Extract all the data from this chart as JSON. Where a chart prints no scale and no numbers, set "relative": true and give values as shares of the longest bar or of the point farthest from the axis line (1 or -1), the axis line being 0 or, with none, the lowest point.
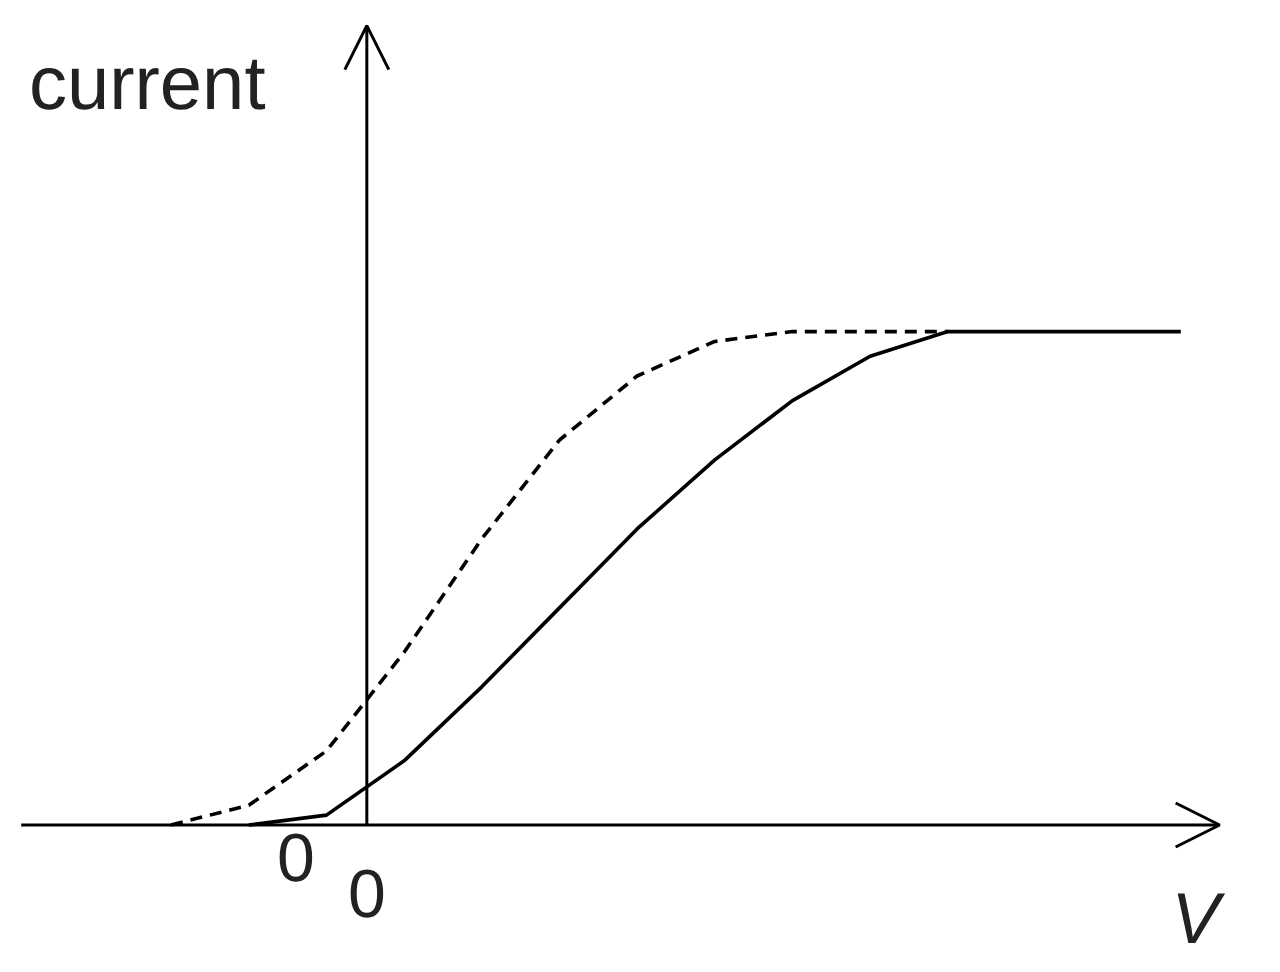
{
  "chart_data": {
    "type": "line",
    "relative": true,
    "xlabel": "V",
    "ylabel": "current",
    "annotations": [
      "0",
      "0"
    ],
    "categories": [
      null,
      null,
      null,
      null,
      null,
      null,
      null,
      null,
      null,
      null,
      null,
      null,
      null,
      null
    ],
    "series": [
      {
        "color": "#000000",
        "line_style": "solid",
        "values": [
          null,
          0,
          0.02,
          0.13,
          0.28,
          0.44,
          0.6,
          0.74,
          0.86,
          0.95,
          1,
          1,
          1,
          1
        ]
      },
      {
        "color": "#000000",
        "line_style": "dashed",
        "values": [
          0,
          0.04,
          0.15,
          0.35,
          0.58,
          0.78,
          0.91,
          0.98,
          1,
          1,
          1,
          null,
          null,
          null
        ]
      }
    ]
  }
}
